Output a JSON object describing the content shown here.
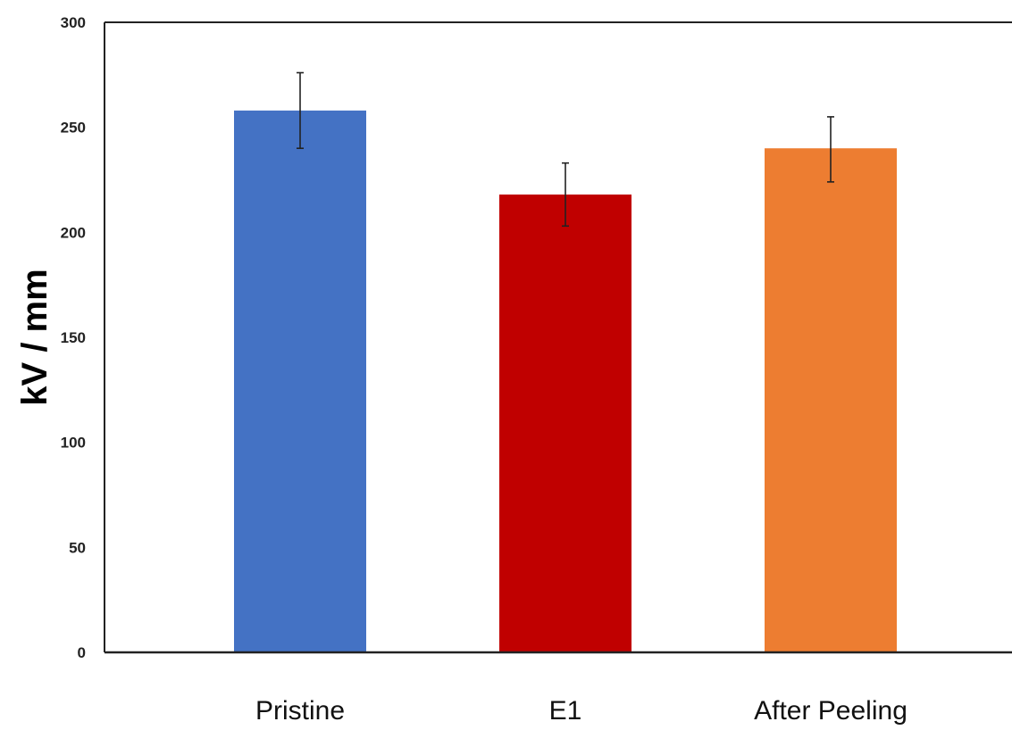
{
  "chart_data": {
    "type": "bar",
    "title": "",
    "xlabel": "",
    "ylabel": "kV / mm",
    "categories": [
      "Pristine",
      "E1",
      "After Peeling"
    ],
    "values": [
      258,
      218,
      240
    ],
    "error_low": [
      240,
      203,
      224
    ],
    "error_high": [
      276,
      233,
      255
    ],
    "colors": [
      "#4472c4",
      "#c00000",
      "#ed7d31"
    ],
    "ylim": [
      0,
      300
    ],
    "yticks": [
      0,
      50,
      100,
      150,
      200,
      250,
      300
    ],
    "grid": false,
    "legend": "none"
  }
}
